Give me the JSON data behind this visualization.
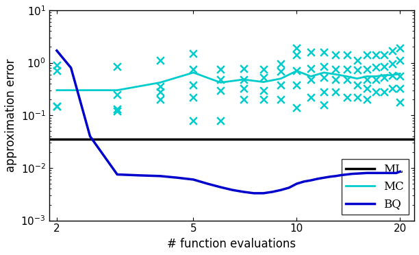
{
  "title": "",
  "xlabel": "# function evaluations",
  "ylabel": "approximation error",
  "xlim": [
    2,
    22
  ],
  "ylim_log": [
    -3,
    1
  ],
  "ml_value": 0.035,
  "bq_x": [
    2,
    2.2,
    2.5,
    3,
    3.5,
    4,
    4.5,
    5,
    5.5,
    6,
    6.5,
    7,
    7.5,
    8,
    8.5,
    9,
    9.5,
    10,
    10.5,
    11,
    11.5,
    12,
    12.5,
    13,
    13.5,
    14,
    14.5,
    15,
    15.5,
    16,
    16.5,
    17,
    17.5,
    18,
    18.5,
    19,
    19.5,
    20
  ],
  "bq_y": [
    1.7,
    0.8,
    0.04,
    0.0075,
    0.0072,
    0.007,
    0.0065,
    0.006,
    0.005,
    0.0043,
    0.0038,
    0.0035,
    0.0033,
    0.0033,
    0.0035,
    0.0038,
    0.0042,
    0.005,
    0.0055,
    0.0058,
    0.0062,
    0.0065,
    0.0068,
    0.007,
    0.0073,
    0.0075,
    0.0077,
    0.0078,
    0.0079,
    0.008,
    0.008,
    0.008,
    0.008,
    0.008,
    0.008,
    0.008,
    0.008,
    0.0085
  ],
  "mc_mean_x": [
    2,
    3,
    4,
    5,
    6,
    7,
    8,
    9,
    10,
    11,
    12,
    13,
    14,
    15,
    16,
    17,
    18,
    19,
    20
  ],
  "mc_mean_y": [
    0.3,
    0.3,
    0.42,
    0.65,
    0.42,
    0.48,
    0.43,
    0.5,
    0.7,
    0.55,
    0.65,
    0.6,
    0.55,
    0.5,
    0.55,
    0.55,
    0.58,
    0.58,
    0.62
  ],
  "mc_scatter_x": [
    2,
    2,
    2,
    2,
    3,
    3,
    3,
    3,
    4,
    4,
    4,
    4,
    5,
    5,
    5,
    5,
    5,
    6,
    6,
    6,
    6,
    7,
    7,
    7,
    7,
    8,
    8,
    8,
    8,
    9,
    9,
    9,
    9,
    10,
    10,
    10,
    10,
    10,
    11,
    11,
    11,
    11,
    12,
    12,
    12,
    12,
    12,
    13,
    13,
    13,
    13,
    14,
    14,
    14,
    14,
    15,
    15,
    15,
    15,
    16,
    16,
    16,
    16,
    16,
    17,
    17,
    17,
    17,
    18,
    18,
    18,
    18,
    19,
    19,
    19,
    19,
    20,
    20,
    20,
    20,
    20
  ],
  "mc_scatter_y": [
    0.9,
    0.7,
    0.15,
    0.15,
    0.13,
    0.12,
    0.25,
    0.85,
    0.35,
    0.28,
    0.2,
    1.1,
    0.75,
    0.38,
    0.22,
    0.08,
    1.5,
    0.75,
    0.48,
    0.3,
    0.08,
    0.78,
    0.48,
    0.32,
    0.2,
    0.75,
    0.52,
    0.3,
    0.2,
    0.95,
    0.68,
    0.38,
    0.2,
    1.9,
    1.4,
    0.7,
    0.38,
    0.14,
    1.6,
    0.78,
    0.48,
    0.22,
    1.6,
    0.85,
    0.52,
    0.28,
    0.16,
    1.4,
    0.75,
    0.48,
    0.28,
    1.4,
    0.75,
    0.48,
    0.22,
    1.1,
    0.72,
    0.38,
    0.22,
    1.4,
    0.75,
    0.48,
    0.32,
    0.2,
    1.4,
    0.82,
    0.48,
    0.28,
    1.4,
    0.85,
    0.52,
    0.28,
    1.7,
    0.95,
    0.58,
    0.32,
    1.9,
    1.1,
    0.55,
    0.32,
    0.18
  ],
  "colors": {
    "ml": "#000000",
    "mc": "#00cccc",
    "bq": "#0000cc"
  },
  "xticks": [
    2,
    5,
    10,
    20
  ],
  "xticklabels": [
    "2",
    "5",
    "10",
    "20"
  ],
  "background_color": "#ffffff",
  "legend_loc": "lower right",
  "font_size": 12,
  "tick_label_size": 11
}
